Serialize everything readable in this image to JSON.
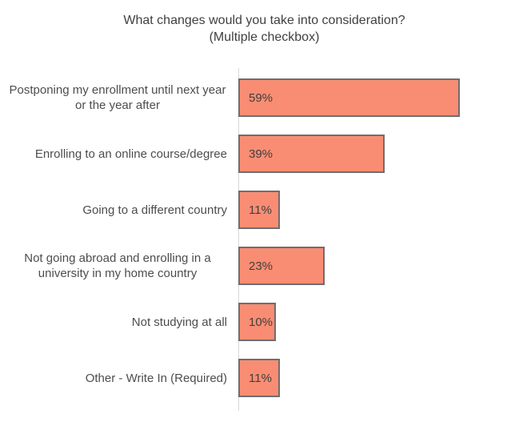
{
  "chart_data": {
    "type": "bar",
    "orientation": "horizontal",
    "title": "What changes would you take into consideration?",
    "subtitle": "(Multiple checkbox)",
    "categories": [
      "Postponing my enrollment until next year or the year after",
      "Enrolling to an online course/degree",
      "Going to a different country",
      "Not going abroad and enrolling in a university in my home country",
      "Not studying at all",
      "Other - Write In (Required)"
    ],
    "values": [
      59,
      39,
      11,
      23,
      10,
      11
    ],
    "value_labels": [
      "59%",
      "39%",
      "11%",
      "23%",
      "10%",
      "11%"
    ],
    "unit": "%",
    "xlim": [
      0,
      74
    ],
    "grid": false,
    "legend": false,
    "label_position": "inside-left",
    "colors": {
      "bar_fill": "#F98D73",
      "bar_border": "#6E6E6E",
      "axis_line": "#D9D9D9",
      "title_text": "#404040",
      "category_text": "#4D4D4D",
      "value_text": "#3F3F3F",
      "background": "#FFFFFF"
    }
  }
}
